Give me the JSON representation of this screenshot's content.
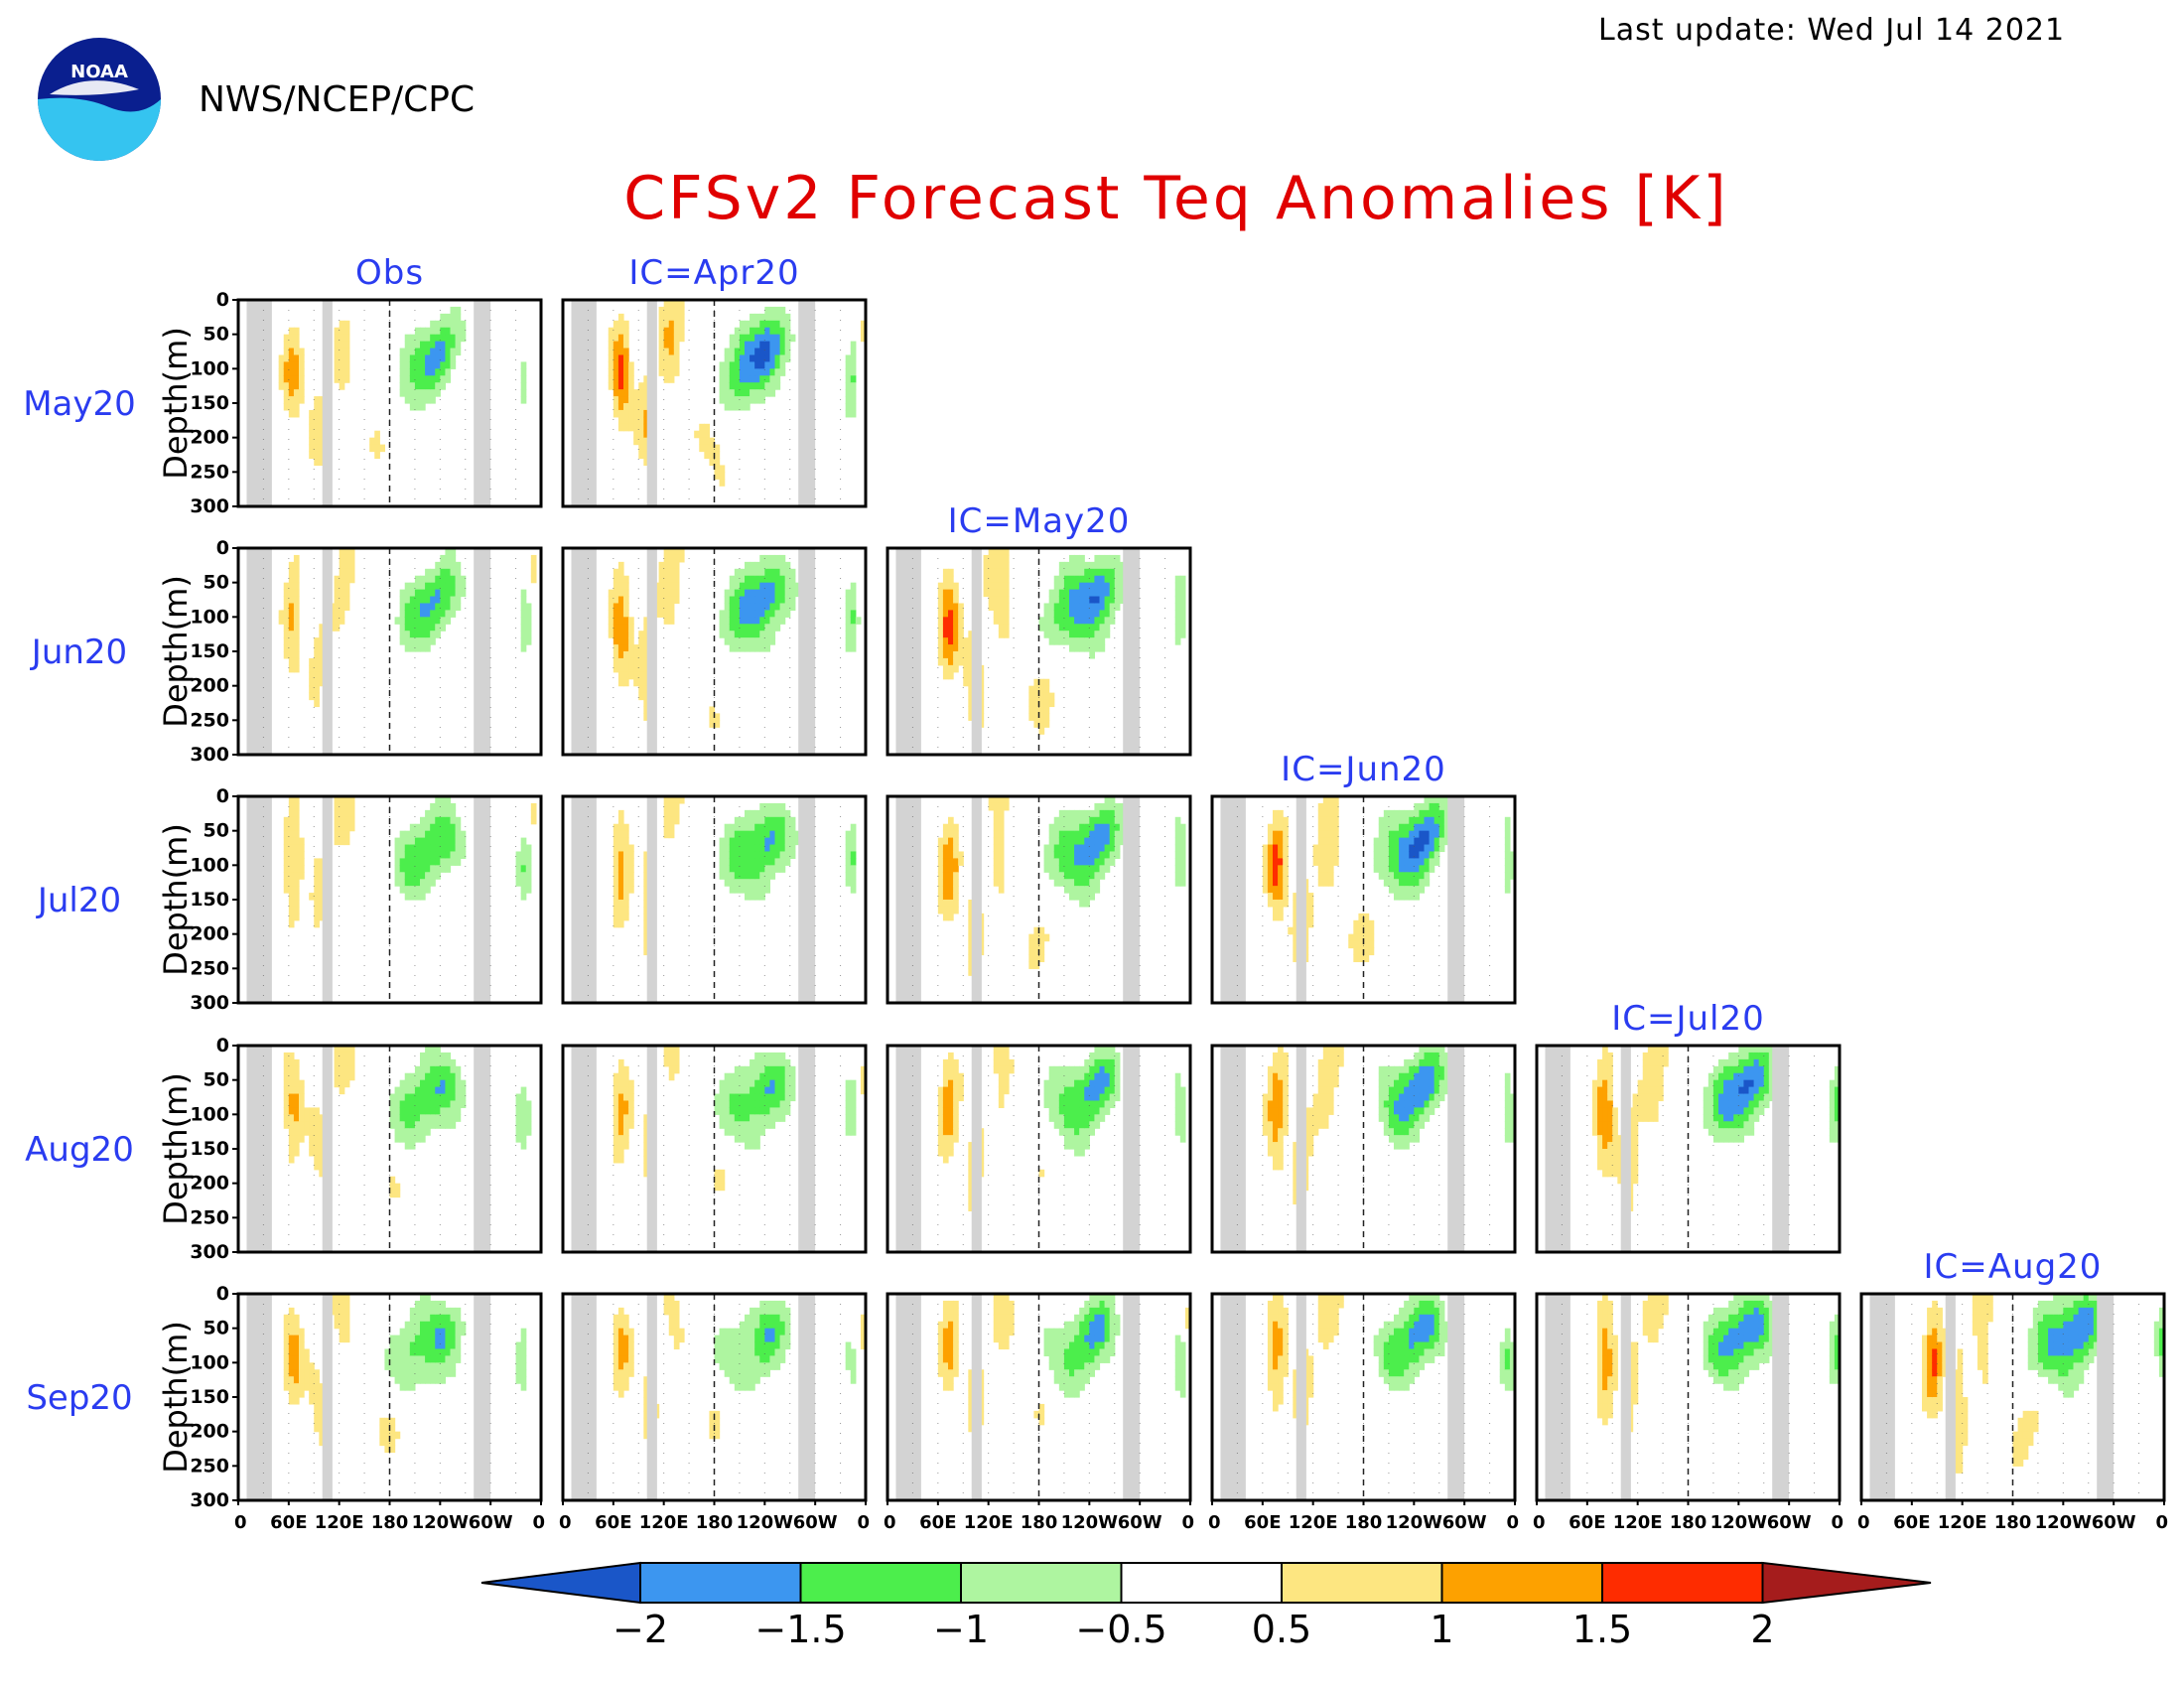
{
  "header": {
    "last_update": "Last update: Wed Jul 14 2021",
    "agency": "NWS/NCEP/CPC",
    "logo_text": "NOAA"
  },
  "colors": {
    "title": "#e00000",
    "labels": "#2a3cf0",
    "land_mask": "#d3d3d3",
    "frame": "#000000"
  },
  "chart_data": {
    "type": "heatmap",
    "title": "CFSv2 Forecast Teq Anomalies [K]",
    "ylabel": "Depth(m)",
    "ylim": [
      300,
      0
    ],
    "y_ticks": [
      0,
      50,
      100,
      150,
      200,
      250,
      300
    ],
    "x_ticks": [
      "0",
      "60E",
      "120E",
      "180",
      "120W",
      "60W",
      "0"
    ],
    "row_labels": [
      "May20",
      "Jun20",
      "Jul20",
      "Aug20",
      "Sep20"
    ],
    "column_labels": [
      "Obs",
      "IC=Apr20",
      "IC=May20",
      "IC=Jun20",
      "IC=Jul20",
      "IC=Aug20"
    ],
    "colorbar": {
      "levels": [
        -2,
        -1.5,
        -1,
        -0.5,
        0.5,
        1,
        1.5,
        2
      ],
      "level_labels": [
        "−2",
        "−1.5",
        "−1",
        "−0.5",
        "0.5",
        "1",
        "1.5",
        "2"
      ],
      "colors": [
        "#1a56c8",
        "#3c96f0",
        "#4cee4c",
        "#aef5a0",
        "#ffffff",
        "#fde681",
        "#fda100",
        "#fe2c00",
        "#a51c1c"
      ]
    }
  }
}
